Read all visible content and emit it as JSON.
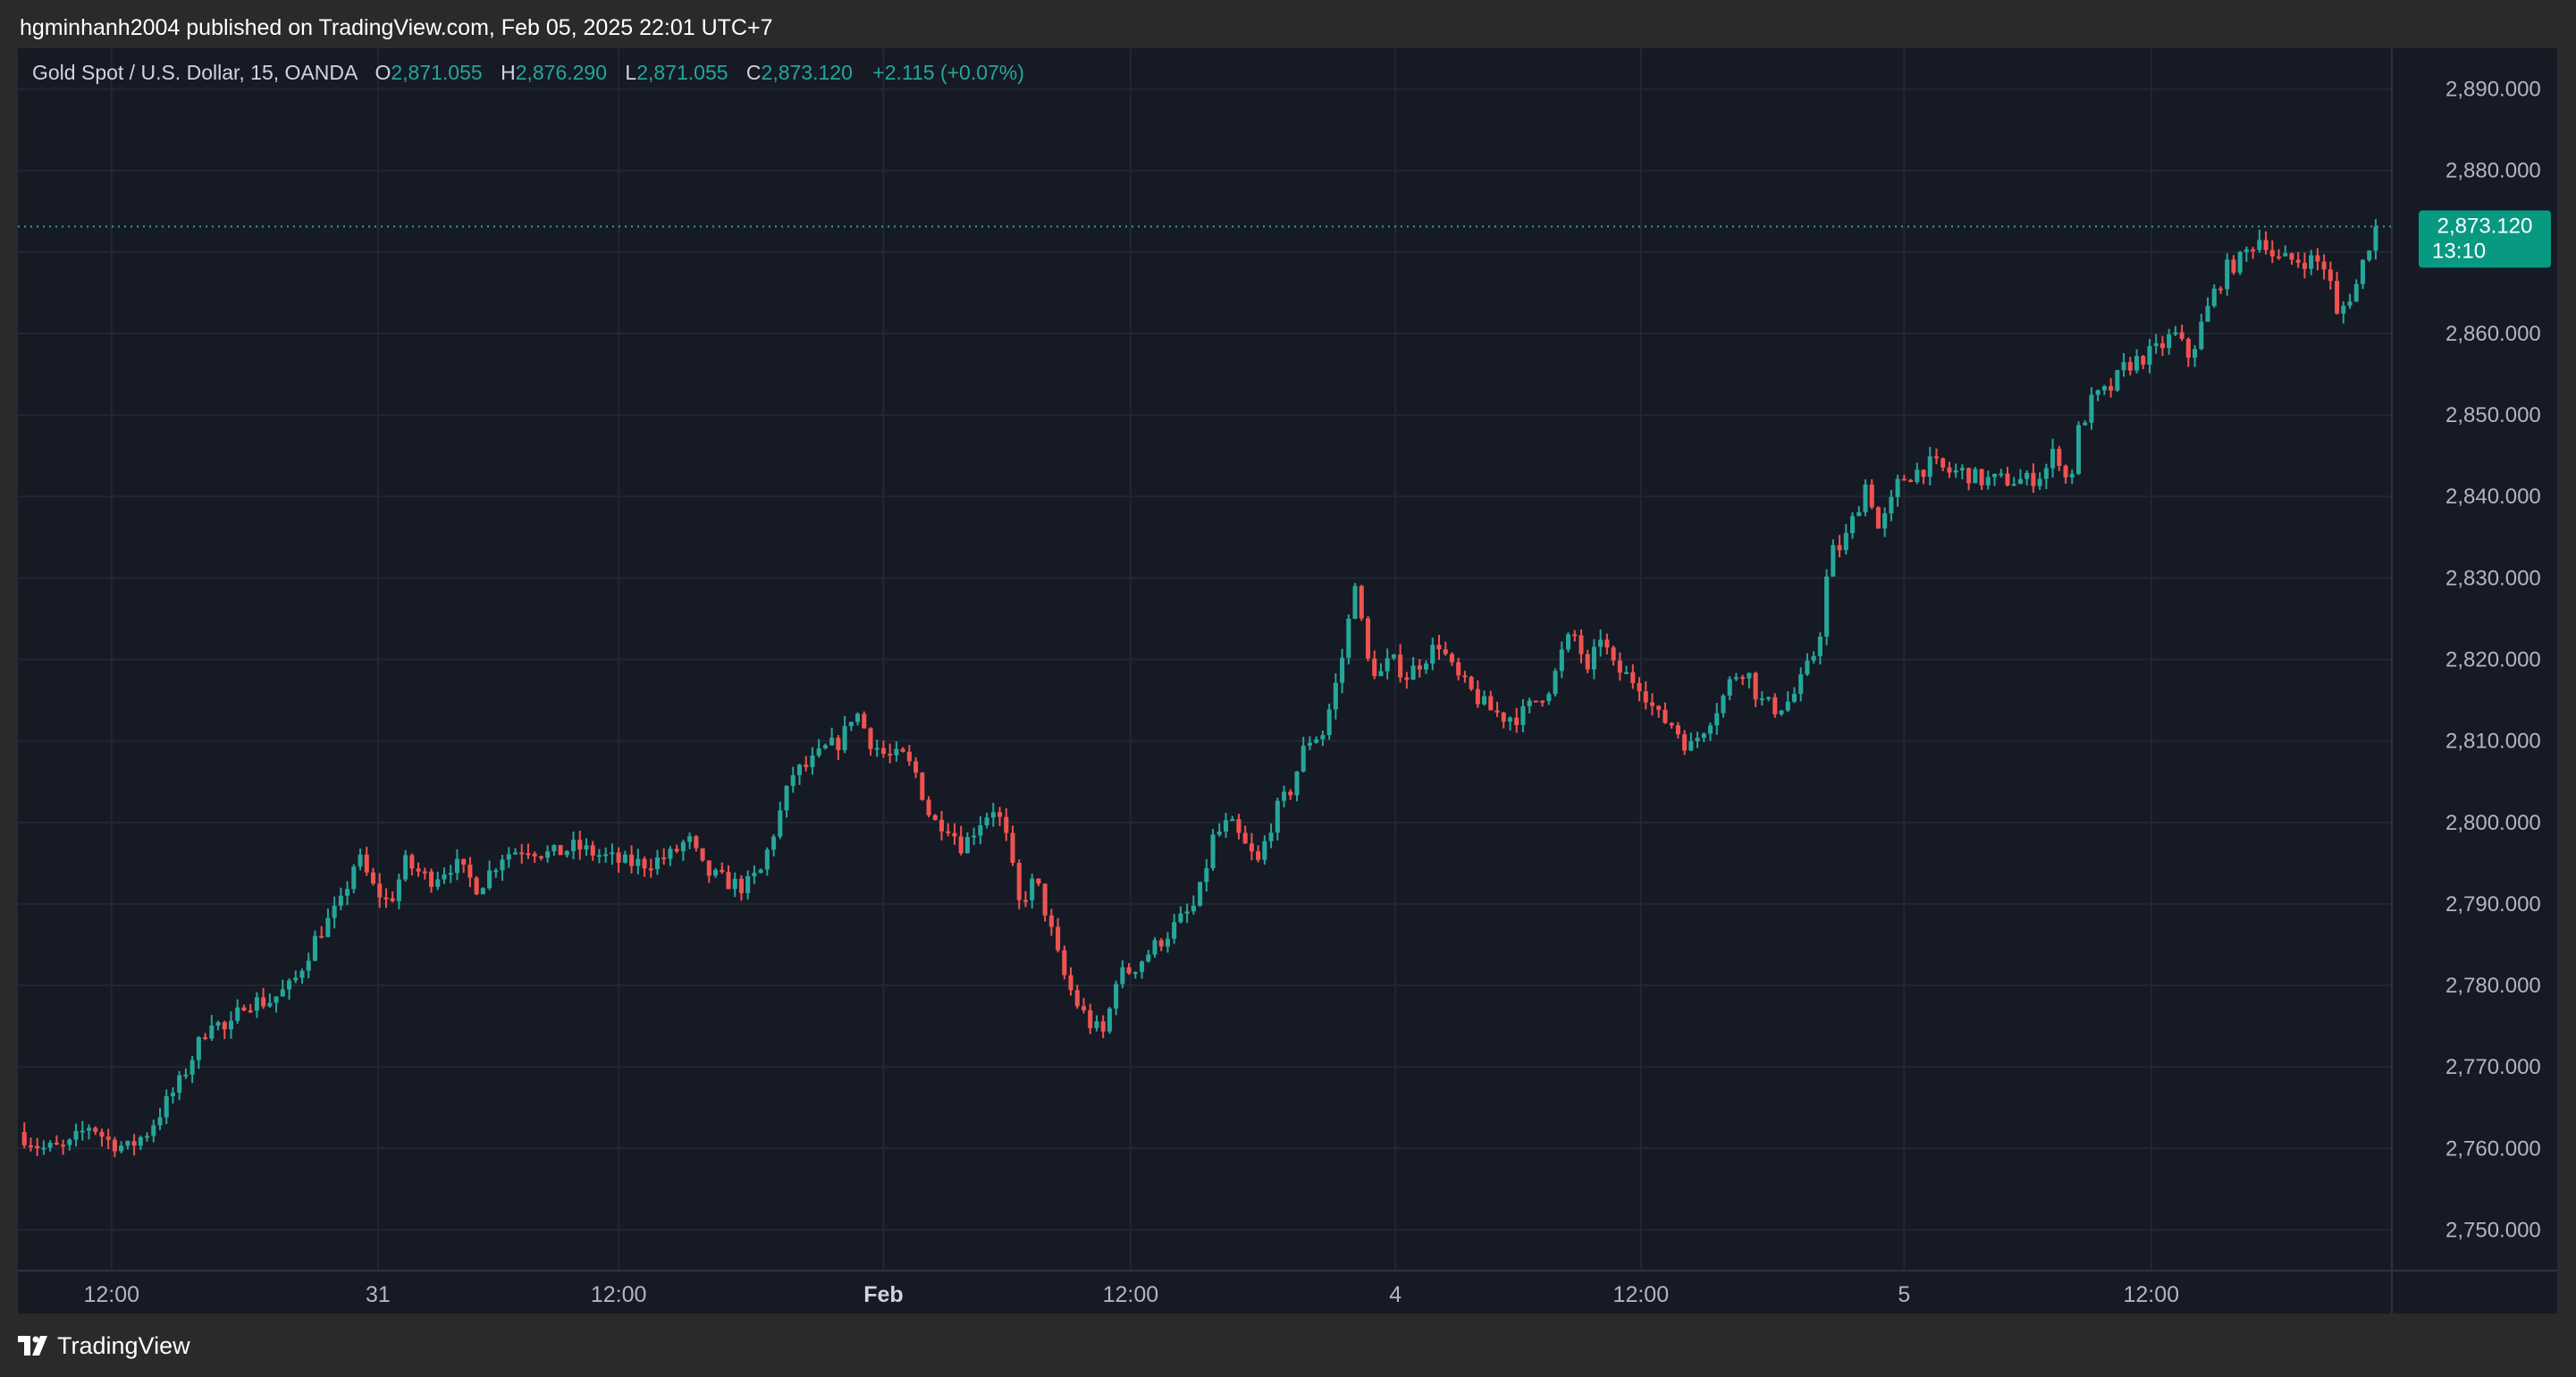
{
  "header": {
    "published_text": "hgminhanh2004 published on TradingView.com, Feb 05, 2025 22:01 UTC+7"
  },
  "legend": {
    "symbol": "Gold Spot / U.S. Dollar, 15, OANDA",
    "o_label": "O",
    "o_value": "2,871.055",
    "h_label": "H",
    "h_value": "2,876.290",
    "l_label": "L",
    "l_value": "2,871.055",
    "c_label": "C",
    "c_value": "2,873.120",
    "change": "+2.115 (+0.07%)"
  },
  "last_price": {
    "price": "2,873.120",
    "countdown": "13:10",
    "value": 2873.12
  },
  "footer": {
    "brand": "TradingView"
  },
  "colors": {
    "background": "#161a25",
    "grid": "#232733",
    "up": "#26a69a",
    "down": "#ef5350",
    "axis_text": "#b2b5be"
  },
  "chart_data": {
    "type": "candlestick",
    "symbol": "XAUUSD",
    "interval": "15",
    "ylim": [
      2745,
      2895
    ],
    "y_ticks": [
      2890,
      2880,
      2870,
      2860,
      2850,
      2840,
      2830,
      2820,
      2810,
      2800,
      2790,
      2780,
      2770,
      2760,
      2750
    ],
    "y_tick_labels": [
      "2,890.000",
      "2,880.000",
      "",
      "2,860.000",
      "2,850.000",
      "2,840.000",
      "2,830.000",
      "2,820.000",
      "2,810.000",
      "2,800.000",
      "2,790.000",
      "2,780.000",
      "2,770.000",
      "2,760.000",
      "2,750.000"
    ],
    "x_ticks": [
      {
        "label": "12:00",
        "bold": false,
        "idx": 58
      },
      {
        "label": "31",
        "bold": false,
        "idx": 223
      },
      {
        "label": "12:00",
        "bold": false,
        "idx": 372
      },
      {
        "label": "Feb",
        "bold": true,
        "idx": 536
      },
      {
        "label": "12:00",
        "bold": false,
        "idx": 689
      },
      {
        "label": "4",
        "bold": false,
        "idx": 853
      },
      {
        "label": "12:00",
        "bold": false,
        "idx": 1005
      },
      {
        "label": "5",
        "bold": false,
        "idx": 1168
      },
      {
        "label": "12:00",
        "bold": false,
        "idx": 1321
      }
    ],
    "x_index_range": [
      0,
      1470
    ],
    "close_path": [
      [
        0,
        2762
      ],
      [
        15,
        2760
      ],
      [
        30,
        2760
      ],
      [
        45,
        2763
      ],
      [
        55,
        2761
      ],
      [
        68,
        2760
      ],
      [
        80,
        2762
      ],
      [
        90,
        2765
      ],
      [
        100,
        2768
      ],
      [
        110,
        2772
      ],
      [
        120,
        2776
      ],
      [
        130,
        2774
      ],
      [
        140,
        2778
      ],
      [
        155,
        2778
      ],
      [
        170,
        2780
      ],
      [
        185,
        2786
      ],
      [
        200,
        2790
      ],
      [
        210,
        2796
      ],
      [
        220,
        2792
      ],
      [
        230,
        2790
      ],
      [
        240,
        2795
      ],
      [
        255,
        2793
      ],
      [
        270,
        2795
      ],
      [
        285,
        2792
      ],
      [
        300,
        2796
      ],
      [
        315,
        2797
      ],
      [
        330,
        2796
      ],
      [
        345,
        2797
      ],
      [
        360,
        2796
      ],
      [
        375,
        2795
      ],
      [
        390,
        2795
      ],
      [
        405,
        2796
      ],
      [
        415,
        2798
      ],
      [
        425,
        2794
      ],
      [
        435,
        2793
      ],
      [
        450,
        2792
      ],
      [
        460,
        2794
      ],
      [
        470,
        2800
      ],
      [
        480,
        2806
      ],
      [
        490,
        2807
      ],
      [
        500,
        2809
      ],
      [
        510,
        2810
      ],
      [
        518,
        2814
      ],
      [
        528,
        2810
      ],
      [
        538,
        2808
      ],
      [
        548,
        2808
      ],
      [
        556,
        2806
      ],
      [
        566,
        2800
      ],
      [
        575,
        2800
      ],
      [
        585,
        2797
      ],
      [
        595,
        2800
      ],
      [
        605,
        2802
      ],
      [
        612,
        2798
      ],
      [
        620,
        2790
      ],
      [
        630,
        2793
      ],
      [
        638,
        2788
      ],
      [
        646,
        2782
      ],
      [
        655,
        2778
      ],
      [
        665,
        2775
      ],
      [
        673,
        2774
      ],
      [
        680,
        2781
      ],
      [
        690,
        2782
      ],
      [
        700,
        2784
      ],
      [
        710,
        2786
      ],
      [
        720,
        2788
      ],
      [
        730,
        2790
      ],
      [
        740,
        2798
      ],
      [
        750,
        2800
      ],
      [
        760,
        2797
      ],
      [
        768,
        2795
      ],
      [
        778,
        2801
      ],
      [
        788,
        2804
      ],
      [
        798,
        2810
      ],
      [
        808,
        2811
      ],
      [
        815,
        2816
      ],
      [
        822,
        2822
      ],
      [
        828,
        2830
      ],
      [
        835,
        2820
      ],
      [
        843,
        2818
      ],
      [
        850,
        2820
      ],
      [
        860,
        2818
      ],
      [
        870,
        2820
      ],
      [
        880,
        2822
      ],
      [
        890,
        2818
      ],
      [
        900,
        2816
      ],
      [
        910,
        2814
      ],
      [
        920,
        2813
      ],
      [
        930,
        2813
      ],
      [
        940,
        2815
      ],
      [
        950,
        2817
      ],
      [
        958,
        2822
      ],
      [
        965,
        2823
      ],
      [
        972,
        2818
      ],
      [
        980,
        2823
      ],
      [
        988,
        2819
      ],
      [
        996,
        2818
      ],
      [
        1005,
        2817
      ],
      [
        1015,
        2813
      ],
      [
        1025,
        2812
      ],
      [
        1035,
        2809
      ],
      [
        1045,
        2812
      ],
      [
        1055,
        2815
      ],
      [
        1062,
        2818
      ],
      [
        1070,
        2819
      ],
      [
        1078,
        2815
      ],
      [
        1088,
        2814
      ],
      [
        1098,
        2815
      ],
      [
        1106,
        2818
      ],
      [
        1115,
        2822
      ],
      [
        1122,
        2833
      ],
      [
        1130,
        2834
      ],
      [
        1138,
        2838
      ],
      [
        1145,
        2842
      ],
      [
        1152,
        2836
      ],
      [
        1158,
        2838
      ],
      [
        1165,
        2842
      ],
      [
        1175,
        2843
      ],
      [
        1185,
        2844
      ],
      [
        1195,
        2843
      ],
      [
        1205,
        2843
      ],
      [
        1215,
        2842
      ],
      [
        1225,
        2842
      ],
      [
        1235,
        2842
      ],
      [
        1245,
        2842
      ],
      [
        1255,
        2843
      ],
      [
        1262,
        2846
      ],
      [
        1270,
        2841
      ],
      [
        1276,
        2848
      ],
      [
        1285,
        2852
      ],
      [
        1295,
        2853
      ],
      [
        1305,
        2856
      ],
      [
        1315,
        2857
      ],
      [
        1325,
        2858
      ],
      [
        1335,
        2860
      ],
      [
        1345,
        2857
      ],
      [
        1352,
        2861
      ],
      [
        1360,
        2865
      ],
      [
        1368,
        2868
      ],
      [
        1376,
        2869
      ],
      [
        1384,
        2871
      ],
      [
        1390,
        2872
      ],
      [
        1398,
        2869
      ],
      [
        1406,
        2869
      ],
      [
        1414,
        2869
      ],
      [
        1422,
        2869
      ],
      [
        1430,
        2868
      ],
      [
        1436,
        2862
      ],
      [
        1442,
        2864
      ],
      [
        1448,
        2866
      ],
      [
        1454,
        2870
      ],
      [
        1460,
        2873.12
      ]
    ],
    "candles_per_day": 96,
    "last_value": 2873.12
  }
}
